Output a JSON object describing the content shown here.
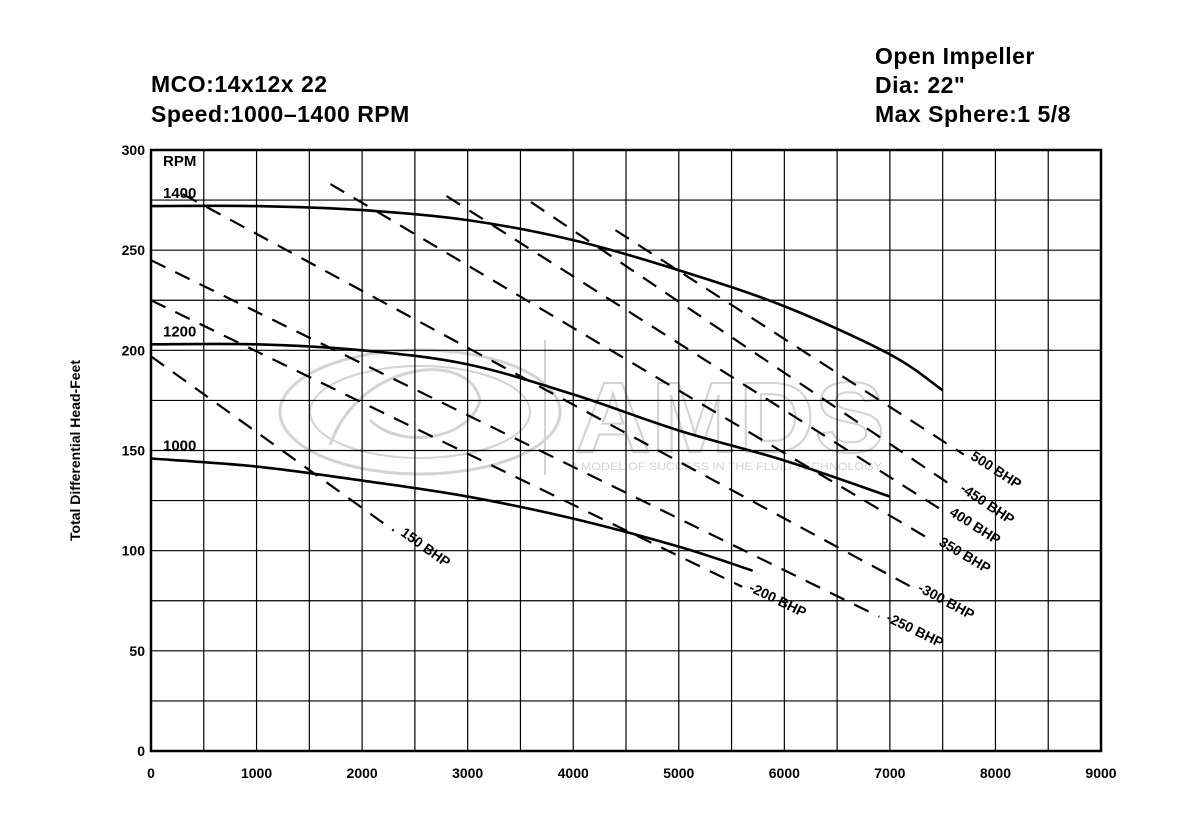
{
  "header": {
    "model": "MCO:14x12x 22",
    "speed": "Speed:1000–1400 RPM",
    "impeller": "Open Impeller",
    "diameter": "Dia: 22\"",
    "sphere": "Max Sphere:1  5/8"
  },
  "watermark": {
    "brand": "AMDS",
    "tagline": "A MODEL OF SUCCESS IN THE FLUID TECHNOLOGY",
    "color": "#cfcfcf"
  },
  "chart_data": {
    "type": "line",
    "ylabel": "Total Differential Head-Feet",
    "xlabel": "",
    "xlim": [
      0,
      9000
    ],
    "ylim": [
      0,
      300
    ],
    "x_ticks": [
      0,
      1000,
      2000,
      3000,
      4000,
      5000,
      6000,
      7000,
      8000,
      9000
    ],
    "y_ticks": [
      0,
      50,
      100,
      150,
      200,
      250,
      300
    ],
    "grid": true,
    "rpm_header": "RPM",
    "series": [
      {
        "name": "1400",
        "x": [
          0,
          1000,
          2000,
          3000,
          4000,
          5000,
          6000,
          7000,
          7500
        ],
        "y": [
          272,
          272,
          270,
          265,
          255,
          240,
          222,
          198,
          180
        ]
      },
      {
        "name": "1200",
        "x": [
          0,
          1000,
          2000,
          3000,
          4000,
          5000,
          6000,
          7000
        ],
        "y": [
          203,
          203,
          200,
          193,
          178,
          160,
          145,
          127
        ]
      },
      {
        "name": "1000",
        "x": [
          0,
          1000,
          2000,
          3000,
          4000,
          5000,
          5700
        ],
        "y": [
          146,
          142,
          135,
          127,
          116,
          102,
          90
        ]
      }
    ],
    "bhp_lines": [
      {
        "label": "150 BHP",
        "x": [
          0,
          2300
        ],
        "y": [
          197,
          110
        ]
      },
      {
        "label": "-200 BHP",
        "x": [
          0,
          5600
        ],
        "y": [
          225,
          82
        ]
      },
      {
        "label": "-250 BHP",
        "x": [
          0,
          6900
        ],
        "y": [
          245,
          67
        ]
      },
      {
        "label": "-300 BHP",
        "x": [
          300,
          7200
        ],
        "y": [
          278,
          82
        ]
      },
      {
        "label": "350 BHP",
        "x": [
          1700,
          7400
        ],
        "y": [
          283,
          105
        ]
      },
      {
        "label": "400 BHP",
        "x": [
          2800,
          7500
        ],
        "y": [
          277,
          120
        ]
      },
      {
        "label": "-450 BHP",
        "x": [
          3600,
          7600
        ],
        "y": [
          274,
          132
        ]
      },
      {
        "label": "500 BHP",
        "x": [
          4400,
          7700
        ],
        "y": [
          260,
          148
        ]
      }
    ],
    "colors": {
      "line": "#000000",
      "grid": "#000000"
    }
  }
}
